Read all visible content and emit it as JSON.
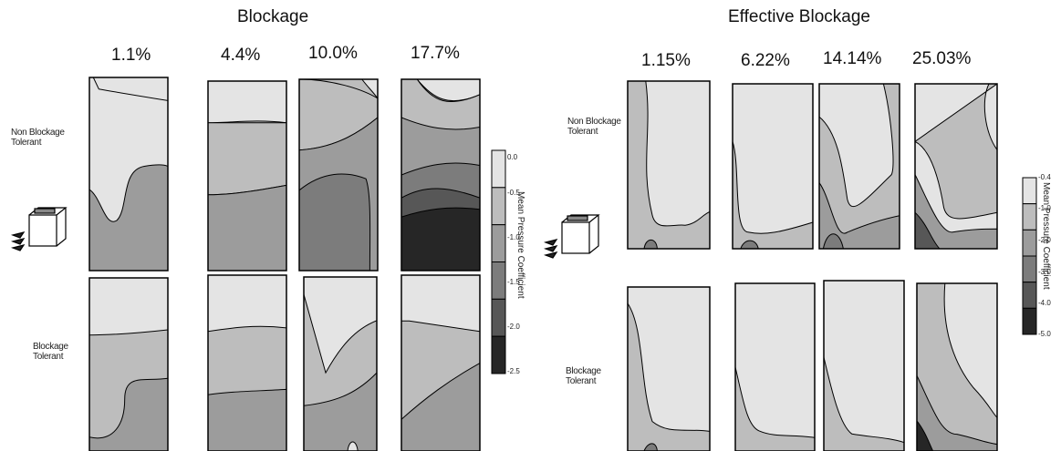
{
  "left": {
    "title": "Blockage",
    "columns": [
      "1.1%",
      "4.4%",
      "10.0%",
      "17.7%"
    ],
    "rows": [
      {
        "label": [
          "Non Blockage",
          "Tolerant"
        ]
      },
      {
        "label": [
          "Blockage",
          "Tolerant"
        ]
      }
    ],
    "colorbar": {
      "title": "Mean Pressure Coefficient",
      "ticks": [
        "0.0",
        "-0.5",
        "-1.0",
        "-1.5",
        "-2.0",
        "-2.5"
      ]
    }
  },
  "right": {
    "title": "Effective Blockage",
    "columns": [
      "1.15%",
      "6.22%",
      "14.14%",
      "25.03%"
    ],
    "rows": [
      {
        "label": [
          "Non Blockage",
          "Tolerant"
        ]
      },
      {
        "label": [
          "Blockage",
          "Tolerant"
        ]
      }
    ],
    "colorbar": {
      "title": "Mean Pressure Coefficient",
      "ticks": [
        "-0.4",
        "-1.0",
        "-2.0",
        "-3.0",
        "-4.0",
        "-5.0"
      ]
    }
  },
  "colors": {
    "level1": "#e4e4e4",
    "level2": "#bdbdbd",
    "level3": "#9c9c9c",
    "level4": "#7c7c7c",
    "level5": "#575757",
    "level6": "#262626",
    "outline": "#000000"
  },
  "icons": [
    "building-wind-icon-left",
    "building-wind-icon-right"
  ]
}
